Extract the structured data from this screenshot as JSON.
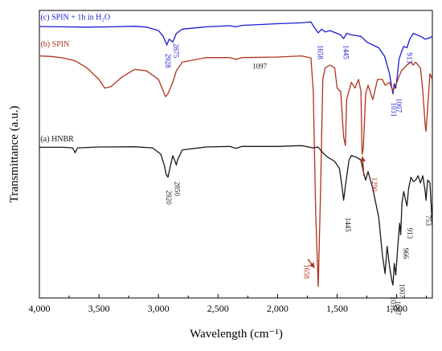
{
  "chart_data": {
    "type": "line",
    "xlabel": "Wavelength (cm⁻¹)",
    "ylabel": "Transmittance (a.u.)",
    "xlim": [
      4000,
      700
    ],
    "x_reversed": true,
    "ylim": [
      0,
      10
    ],
    "y_ticks_shown": false,
    "grid": false,
    "x_ticks": [
      {
        "value": 4000,
        "label": "4,000"
      },
      {
        "value": 3500,
        "label": "3,500"
      },
      {
        "value": 3000,
        "label": "3,000"
      },
      {
        "value": 2500,
        "label": "2,500"
      },
      {
        "value": 2000,
        "label": "2,000"
      },
      {
        "value": 1500,
        "label": "1,500"
      },
      {
        "value": 1000,
        "label": "1,000"
      }
    ],
    "series": [
      {
        "name": "(c) SPIN + 1h in H₂O",
        "color": "#1a1ad6",
        "points": [
          [
            4000,
            9.44
          ],
          [
            3800,
            9.43
          ],
          [
            3600,
            9.42
          ],
          [
            3400,
            9.43
          ],
          [
            3200,
            9.45
          ],
          [
            3100,
            9.42
          ],
          [
            3000,
            9.3
          ],
          [
            2960,
            9.1
          ],
          [
            2930,
            8.8
          ],
          [
            2910,
            9.0
          ],
          [
            2880,
            8.9
          ],
          [
            2850,
            9.2
          ],
          [
            2800,
            9.35
          ],
          [
            2600,
            9.43
          ],
          [
            2400,
            9.47
          ],
          [
            2350,
            9.43
          ],
          [
            2300,
            9.48
          ],
          [
            2000,
            9.54
          ],
          [
            1800,
            9.57
          ],
          [
            1720,
            9.6
          ],
          [
            1690,
            9.4
          ],
          [
            1658,
            9.22
          ],
          [
            1630,
            9.35
          ],
          [
            1600,
            9.25
          ],
          [
            1560,
            9.3
          ],
          [
            1500,
            9.2
          ],
          [
            1470,
            9.15
          ],
          [
            1445,
            9.02
          ],
          [
            1420,
            9.2
          ],
          [
            1380,
            9.15
          ],
          [
            1300,
            9.1
          ],
          [
            1250,
            8.9
          ],
          [
            1200,
            8.8
          ],
          [
            1150,
            8.7
          ],
          [
            1100,
            8.4
          ],
          [
            1060,
            7.8
          ],
          [
            1040,
            7.3
          ],
          [
            1031,
            7.1
          ],
          [
            1020,
            7.45
          ],
          [
            1007,
            7.3
          ],
          [
            995,
            7.7
          ],
          [
            980,
            8.3
          ],
          [
            960,
            8.55
          ],
          [
            940,
            8.75
          ],
          [
            913,
            8.7
          ],
          [
            890,
            9.0
          ],
          [
            860,
            9.2
          ],
          [
            800,
            9.1
          ],
          [
            760,
            9.0
          ],
          [
            720,
            9.05
          ],
          [
            700,
            9.1
          ]
        ]
      },
      {
        "name": "(b) SPIN",
        "color": "#b0321e",
        "points": [
          [
            4000,
            8.42
          ],
          [
            3900,
            8.4
          ],
          [
            3800,
            8.35
          ],
          [
            3700,
            8.25
          ],
          [
            3600,
            8.0
          ],
          [
            3500,
            7.6
          ],
          [
            3450,
            7.3
          ],
          [
            3400,
            7.35
          ],
          [
            3300,
            7.7
          ],
          [
            3200,
            7.95
          ],
          [
            3100,
            7.9
          ],
          [
            3000,
            7.6
          ],
          [
            2960,
            7.2
          ],
          [
            2940,
            7.0
          ],
          [
            2920,
            7.1
          ],
          [
            2880,
            7.5
          ],
          [
            2850,
            7.9
          ],
          [
            2800,
            8.2
          ],
          [
            2600,
            8.36
          ],
          [
            2400,
            8.36
          ],
          [
            2350,
            8.3
          ],
          [
            2300,
            8.36
          ],
          [
            2000,
            8.38
          ],
          [
            1800,
            8.42
          ],
          [
            1720,
            8.35
          ],
          [
            1700,
            7.2
          ],
          [
            1680,
            3.0
          ],
          [
            1658,
            0.4
          ],
          [
            1640,
            3.5
          ],
          [
            1620,
            7.6
          ],
          [
            1600,
            8.0
          ],
          [
            1560,
            8.1
          ],
          [
            1520,
            8.0
          ],
          [
            1500,
            7.3
          ],
          [
            1480,
            7.2
          ],
          [
            1470,
            7.2
          ],
          [
            1445,
            5.6
          ],
          [
            1430,
            5.3
          ],
          [
            1420,
            6.9
          ],
          [
            1400,
            7.2
          ],
          [
            1380,
            7.5
          ],
          [
            1350,
            7.3
          ],
          [
            1320,
            7.6
          ],
          [
            1300,
            7.2
          ],
          [
            1290,
            5.0
          ],
          [
            1280,
            5.2
          ],
          [
            1260,
            7.1
          ],
          [
            1240,
            7.4
          ],
          [
            1200,
            6.9
          ],
          [
            1160,
            7.6
          ],
          [
            1120,
            7.6
          ],
          [
            1097,
            7.4
          ],
          [
            1060,
            7.5
          ],
          [
            1031,
            7.2
          ],
          [
            1007,
            7.4
          ],
          [
            980,
            7.7
          ],
          [
            960,
            7.9
          ],
          [
            913,
            8.1
          ],
          [
            880,
            8.2
          ],
          [
            860,
            8.1
          ],
          [
            840,
            8.2
          ],
          [
            800,
            8.0
          ],
          [
            780,
            7.2
          ],
          [
            760,
            6.0
          ],
          [
            753,
            5.8
          ],
          [
            740,
            6.6
          ],
          [
            720,
            7.8
          ],
          [
            700,
            7.6
          ]
        ]
      },
      {
        "name": "(a) HNBR",
        "color": "#1a1a1a",
        "points": [
          [
            4000,
            5.24
          ],
          [
            3800,
            5.24
          ],
          [
            3720,
            5.22
          ],
          [
            3700,
            5.05
          ],
          [
            3680,
            5.22
          ],
          [
            3500,
            5.25
          ],
          [
            3200,
            5.26
          ],
          [
            3050,
            5.22
          ],
          [
            2980,
            5.0
          ],
          [
            2950,
            4.6
          ],
          [
            2935,
            4.3
          ],
          [
            2920,
            4.2
          ],
          [
            2905,
            4.5
          ],
          [
            2880,
            4.95
          ],
          [
            2860,
            4.75
          ],
          [
            2850,
            4.62
          ],
          [
            2840,
            4.8
          ],
          [
            2800,
            5.15
          ],
          [
            2600,
            5.25
          ],
          [
            2400,
            5.27
          ],
          [
            2350,
            5.2
          ],
          [
            2300,
            5.27
          ],
          [
            2000,
            5.27
          ],
          [
            1800,
            5.3
          ],
          [
            1700,
            5.22
          ],
          [
            1660,
            5.25
          ],
          [
            1620,
            5.05
          ],
          [
            1580,
            4.9
          ],
          [
            1520,
            4.75
          ],
          [
            1480,
            4.5
          ],
          [
            1460,
            3.9
          ],
          [
            1445,
            3.4
          ],
          [
            1430,
            3.9
          ],
          [
            1400,
            4.8
          ],
          [
            1380,
            4.95
          ],
          [
            1340,
            4.9
          ],
          [
            1300,
            4.8
          ],
          [
            1280,
            4.4
          ],
          [
            1260,
            4.1
          ],
          [
            1240,
            4.4
          ],
          [
            1200,
            3.8
          ],
          [
            1150,
            2.8
          ],
          [
            1120,
            1.5
          ],
          [
            1097,
            0.85
          ],
          [
            1080,
            1.8
          ],
          [
            1060,
            1.1
          ],
          [
            1040,
            0.6
          ],
          [
            1031,
            0.45
          ],
          [
            1020,
            1.2
          ],
          [
            1007,
            0.8
          ],
          [
            990,
            1.8
          ],
          [
            975,
            2.6
          ],
          [
            966,
            2.2
          ],
          [
            955,
            3.3
          ],
          [
            940,
            3.7
          ],
          [
            925,
            3.4
          ],
          [
            913,
            3.2
          ],
          [
            900,
            3.8
          ],
          [
            880,
            4.2
          ],
          [
            860,
            4.05
          ],
          [
            840,
            4.1
          ],
          [
            820,
            4.25
          ],
          [
            800,
            4.0
          ],
          [
            780,
            4.25
          ],
          [
            760,
            3.7
          ],
          [
            753,
            3.4
          ],
          [
            740,
            4.1
          ],
          [
            720,
            4.0
          ],
          [
            700,
            2.5
          ]
        ]
      }
    ],
    "annotations": [
      {
        "text": "(c) SPIN + 1h in H₂O",
        "x": 3990,
        "y": 9.68,
        "color": "#1a1ad6",
        "size": 10,
        "rotate": false,
        "anchor": "start"
      },
      {
        "text": "(b) SPIN",
        "x": 3990,
        "y": 8.75,
        "color": "#b0321e",
        "size": 10,
        "rotate": false,
        "anchor": "start"
      },
      {
        "text": "(a) HNBR",
        "x": 3990,
        "y": 5.45,
        "color": "#1a1a1a",
        "size": 10,
        "rotate": false,
        "anchor": "start"
      },
      {
        "text": "2928",
        "x": 2942,
        "y": 8.25,
        "color": "#1a1ad6",
        "size": 9,
        "rotate": true,
        "anchor": "middle"
      },
      {
        "text": "2875",
        "x": 2872,
        "y": 8.6,
        "color": "#1a1ad6",
        "size": 9,
        "rotate": true,
        "anchor": "middle"
      },
      {
        "text": "1658",
        "x": 1660,
        "y": 8.55,
        "color": "#1a1ad6",
        "size": 9,
        "rotate": true,
        "anchor": "middle"
      },
      {
        "text": "1445",
        "x": 1445,
        "y": 8.55,
        "color": "#1a1ad6",
        "size": 9,
        "rotate": true,
        "anchor": "middle"
      },
      {
        "text": "1031",
        "x": 1043,
        "y": 6.55,
        "color": "#1a1ad6",
        "size": 9,
        "rotate": true,
        "anchor": "middle"
      },
      {
        "text": "1007",
        "x": 1000,
        "y": 6.7,
        "color": "#1a1ad6",
        "size": 9,
        "rotate": true,
        "anchor": "middle"
      },
      {
        "text": "913",
        "x": 912,
        "y": 8.35,
        "color": "#1a1ad6",
        "size": 9,
        "rotate": true,
        "anchor": "middle"
      },
      {
        "text": "1097",
        "x": 2150,
        "y": 7.98,
        "color": "#1a1a1a",
        "size": 9,
        "rotate": false,
        "anchor": "middle"
      },
      {
        "text": "1290",
        "x": 1205,
        "y": 3.95,
        "color": "#b0321e",
        "size": 9,
        "rotate": true,
        "anchor": "middle"
      },
      {
        "text": "1658",
        "x": 1778,
        "y": 0.92,
        "color": "#b0321e",
        "size": 9,
        "rotate": true,
        "anchor": "middle"
      },
      {
        "text": "2920",
        "x": 2935,
        "y": 3.5,
        "color": "#1a1a1a",
        "size": 9,
        "rotate": true,
        "anchor": "middle"
      },
      {
        "text": "2850",
        "x": 2862,
        "y": 3.8,
        "color": "#1a1a1a",
        "size": 9,
        "rotate": true,
        "anchor": "middle"
      },
      {
        "text": "1445",
        "x": 1430,
        "y": 2.55,
        "color": "#1a1a1a",
        "size": 9,
        "rotate": true,
        "anchor": "middle"
      },
      {
        "text": "1031",
        "x": 1050,
        "y": -0.2,
        "color": "#1a1a1a",
        "size": 9,
        "rotate": true,
        "anchor": "middle"
      },
      {
        "text": "1097",
        "x": 1012,
        "y": -0.35,
        "color": "#1a1a1a",
        "size": 9,
        "rotate": true,
        "anchor": "middle"
      },
      {
        "text": "1007",
        "x": 972,
        "y": 0.25,
        "color": "#1a1a1a",
        "size": 9,
        "rotate": true,
        "anchor": "middle"
      },
      {
        "text": "966",
        "x": 943,
        "y": 1.55,
        "color": "#1a1a1a",
        "size": 9,
        "rotate": true,
        "anchor": "middle"
      },
      {
        "text": "913",
        "x": 908,
        "y": 2.25,
        "color": "#1a1a1a",
        "size": 9,
        "rotate": true,
        "anchor": "middle"
      },
      {
        "text": "753",
        "x": 755,
        "y": 2.7,
        "color": "#1a1a1a",
        "size": 9,
        "rotate": true,
        "anchor": "middle"
      }
    ],
    "arrows": [
      {
        "from": [
          1275,
          4.25
        ],
        "to": [
          1287,
          4.92
        ],
        "color": "#b0321e"
      },
      {
        "from": [
          1745,
          1.35
        ],
        "to": [
          1690,
          1.05
        ],
        "color": "#b0321e"
      }
    ]
  }
}
